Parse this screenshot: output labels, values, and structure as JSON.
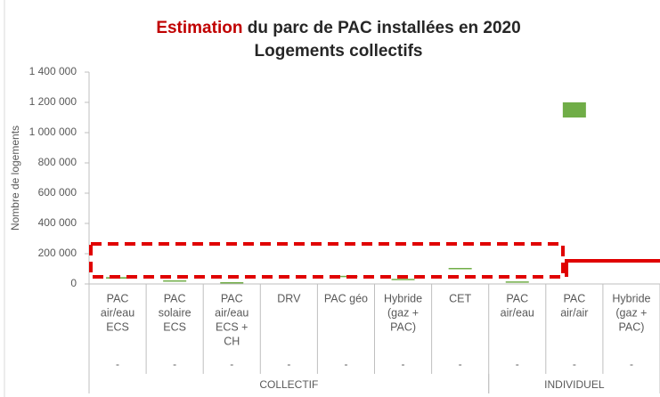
{
  "chart_data": {
    "type": "floating-bar",
    "title_highlight": "Estimation",
    "title_rest": " du parc de PAC installées en 2020",
    "subtitle": "Logements collectifs",
    "y_label": "Nombre de logements",
    "categories": [
      [
        "PAC",
        "air/eau",
        "ECS"
      ],
      [
        "PAC",
        "solaire",
        "ECS"
      ],
      [
        "PAC",
        "air/eau",
        "ECS +",
        "CH"
      ],
      [
        "DRV"
      ],
      [
        "PAC géo"
      ],
      [
        "Hybride",
        "(gaz +",
        "PAC)"
      ],
      [
        "CET"
      ],
      [
        "PAC",
        "air/eau"
      ],
      [
        "PAC",
        "air/air"
      ],
      [
        "Hybride",
        "(gaz +",
        "PAC)"
      ]
    ],
    "sublabels": [
      "-",
      "-",
      "-",
      "-",
      "-",
      "-",
      "-",
      "-",
      "-",
      "-"
    ],
    "groups": [
      {
        "label": "COLLECTIF",
        "span": 7
      },
      {
        "label": "INDIVIDUEL",
        "span": 3
      }
    ],
    "low": [
      35000,
      15000,
      3000,
      null,
      45000,
      25000,
      97000,
      8000,
      1100000,
      null
    ],
    "high": [
      45000,
      20000,
      6000,
      null,
      47000,
      30000,
      100000,
      12000,
      1200000,
      null
    ],
    "color": "#70ad47",
    "title_highlight_color": "#c00000",
    "ylim": [
      0,
      1400000
    ],
    "yticks": [
      0,
      {
        "value": 200000,
        "label": "200 000"
      },
      {
        "value": 400000,
        "label": "400 000"
      },
      {
        "value": 600000,
        "label": "600 000"
      },
      {
        "value": 800000,
        "label": "800 000"
      },
      {
        "value": 1000000,
        "label": "1 000 000"
      },
      {
        "value": 1200000,
        "label": "1 200 000"
      },
      {
        "value": 1400000,
        "label": "1 400 000"
      }
    ]
  }
}
